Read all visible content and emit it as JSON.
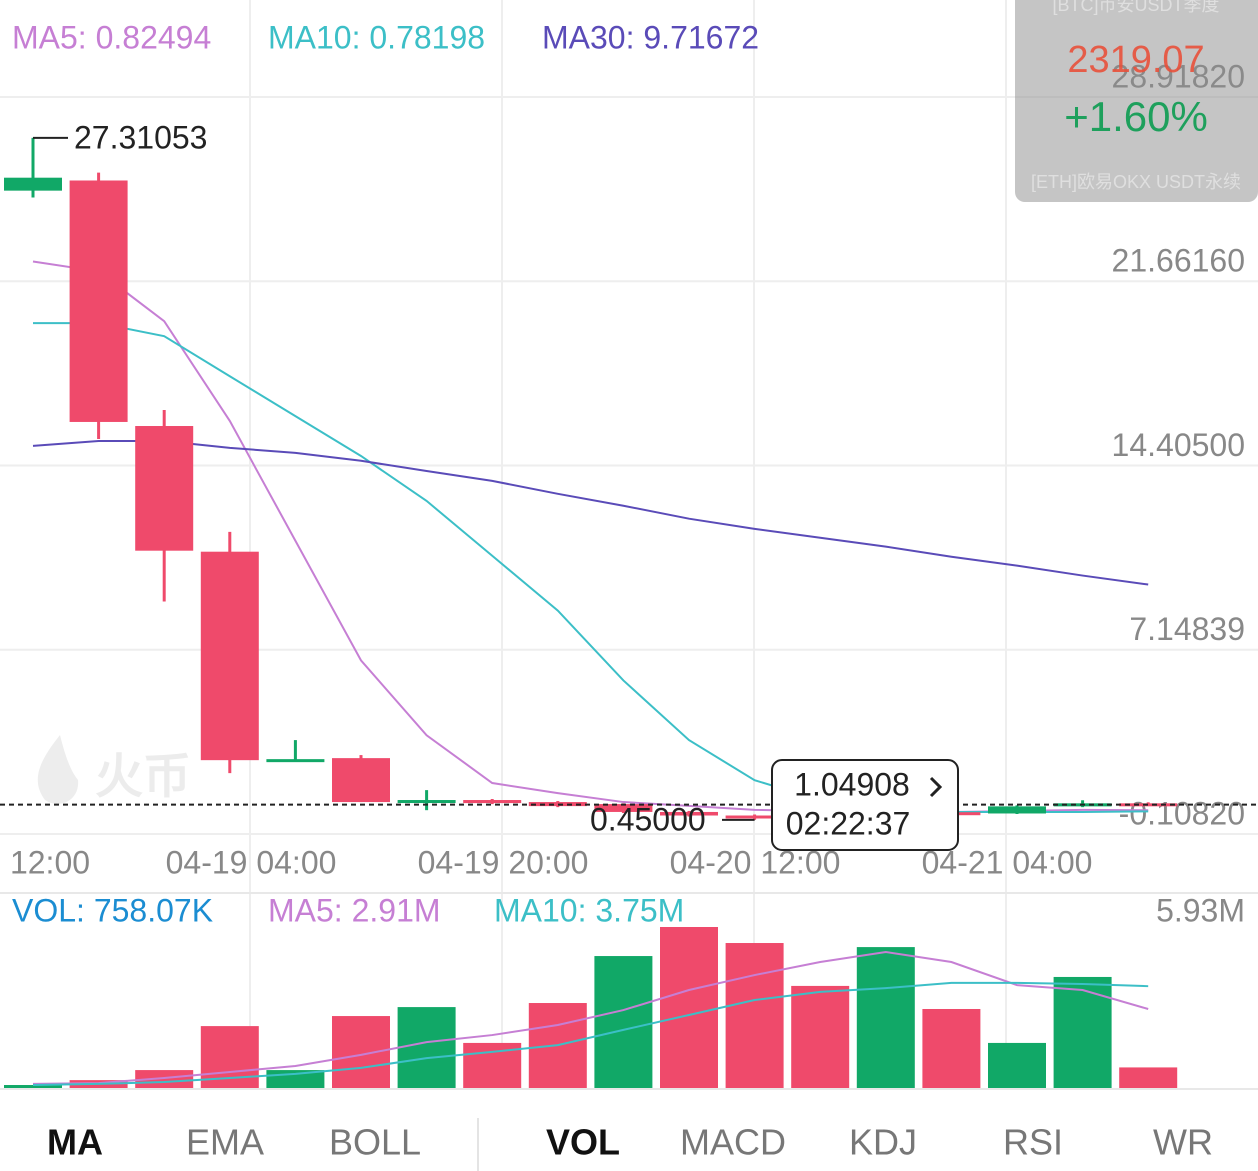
{
  "chart_data": [
    {
      "type": "candlestick",
      "legend": [
        {
          "text": "MA5: 0.82494",
          "color": "#c67fd4"
        },
        {
          "text": "MA10: 0.78198",
          "color": "#3cbfc7"
        },
        {
          "text": "MA30: 9.71672",
          "color": "#5a4bb8"
        }
      ],
      "x_labels": [
        "12:00",
        "04-19 04:00",
        "04-19 20:00",
        "04-20 12:00",
        "04-21 04:00"
      ],
      "open": [
        25.23,
        25.63,
        15.96,
        11.01,
        2.76,
        2.88,
        1.15,
        1.23,
        1.15,
        1.07,
        0.76,
        0.62,
        0.62,
        0.58,
        0.75,
        0.7,
        0.98,
        1.1
      ],
      "high": [
        27.31053,
        25.94,
        16.59,
        11.79,
        3.59,
        3.0,
        1.62,
        1.27,
        1.19,
        1.1,
        0.8,
        0.66,
        0.66,
        0.78,
        0.79,
        1.02,
        1.22,
        1.14
      ],
      "low": [
        24.96,
        15.45,
        9.05,
        2.29,
        2.76,
        1.15,
        0.83,
        1.07,
        0.95,
        0.72,
        0.58,
        0.45,
        0.52,
        0.56,
        0.66,
        0.68,
        0.95,
        1.02
      ],
      "close": [
        25.74,
        16.12,
        11.05,
        2.8,
        2.84,
        1.15,
        1.23,
        1.11,
        0.99,
        0.76,
        0.62,
        0.55,
        0.58,
        0.75,
        0.7,
        0.98,
        1.1,
        1.04908
      ],
      "up_color": "#11a867",
      "down_color": "#ef4a6b",
      "series": [
        {
          "name": "MA5",
          "color": "#c67fd4",
          "values": [
            22.44,
            22.05,
            20.09,
            16.16,
            11.44,
            6.73,
            3.78,
            1.9,
            1.5,
            1.15,
            1.0,
            0.84,
            0.8,
            0.76,
            0.76,
            0.8,
            0.84,
            0.82494
          ]
        },
        {
          "name": "MA10",
          "color": "#3cbfc7",
          "values": [
            20.01,
            20.01,
            19.5,
            17.92,
            16.35,
            14.78,
            13.01,
            10.85,
            8.69,
            5.94,
            3.59,
            2.01,
            1.23,
            0.91,
            0.76,
            0.76,
            0.76,
            0.78198
          ]
        },
        {
          "name": "MA30",
          "color": "#5a4bb8",
          "values": [
            15.18,
            15.37,
            15.37,
            15.1,
            14.9,
            14.59,
            14.19,
            13.8,
            13.29,
            12.82,
            12.31,
            11.91,
            11.56,
            11.21,
            10.81,
            10.46,
            10.07,
            9.71672
          ]
        }
      ],
      "ylim": [
        -0.1082,
        28.9182
      ],
      "yticks": [
        {
          "value": -0.1082,
          "label": "-0.10820"
        },
        7.14839,
        {
          "value": 14.405,
          "label": "14.40500"
        },
        {
          "value": 21.6616,
          "label": "21.66160"
        },
        {
          "value": 28.9182,
          "label": "28.91820"
        }
      ],
      "grid": true,
      "max_label": {
        "value": 27.31053,
        "label": "27.31053"
      },
      "min_label": {
        "value": 0.45,
        "label": "0.45000"
      },
      "current_price": 1.04908,
      "countdown": "02:22:37",
      "watermark": "火币"
    },
    {
      "type": "bar",
      "legend": [
        {
          "text": "VOL: 758.07K",
          "color": "#1b8dd2"
        },
        {
          "text": "MA5: 2.91M",
          "color": "#c67fd4"
        },
        {
          "text": "MA10: 3.75M",
          "color": "#3cbfc7"
        }
      ],
      "values": [
        0.11,
        0.29,
        0.66,
        2.28,
        0.66,
        2.65,
        2.98,
        1.66,
        3.13,
        4.86,
        5.93,
        5.34,
        3.76,
        5.19,
        2.91,
        1.66,
        4.09,
        0.75807
      ],
      "colors": [
        "#11a867",
        "#ef4a6b",
        "#ef4a6b",
        "#ef4a6b",
        "#11a867",
        "#ef4a6b",
        "#11a867",
        "#ef4a6b",
        "#ef4a6b",
        "#11a867",
        "#ef4a6b",
        "#ef4a6b",
        "#ef4a6b",
        "#11a867",
        "#ef4a6b",
        "#11a867",
        "#11a867",
        "#ef4a6b"
      ],
      "series": [
        {
          "name": "MA5",
          "color": "#c67fd4",
          "values": [
            0.15,
            0.18,
            0.37,
            0.59,
            0.81,
            1.22,
            1.69,
            1.95,
            2.32,
            2.87,
            3.61,
            4.16,
            4.64,
            5.01,
            4.64,
            3.79,
            3.61,
            2.91
          ]
        },
        {
          "name": "MA10",
          "color": "#3cbfc7",
          "values": [
            0.11,
            0.15,
            0.22,
            0.37,
            0.52,
            0.74,
            1.1,
            1.33,
            1.58,
            2.14,
            2.69,
            3.24,
            3.54,
            3.68,
            3.87,
            3.87,
            3.83,
            3.75
          ]
        }
      ],
      "ylim": [
        0,
        5.93
      ],
      "yticks": [
        {
          "value": 5.93,
          "label": "5.93M"
        }
      ]
    }
  ],
  "overlay": {
    "top": "[BTC]币安USDT季度",
    "price": "2319.07",
    "change": "+1.60%",
    "bottom": "[ETH]欧易OKX USDT永续"
  },
  "tabs": {
    "left": [
      "MA",
      "EMA",
      "BOLL"
    ],
    "right": [
      "VOL",
      "MACD",
      "KDJ",
      "RSI",
      "WR"
    ]
  }
}
